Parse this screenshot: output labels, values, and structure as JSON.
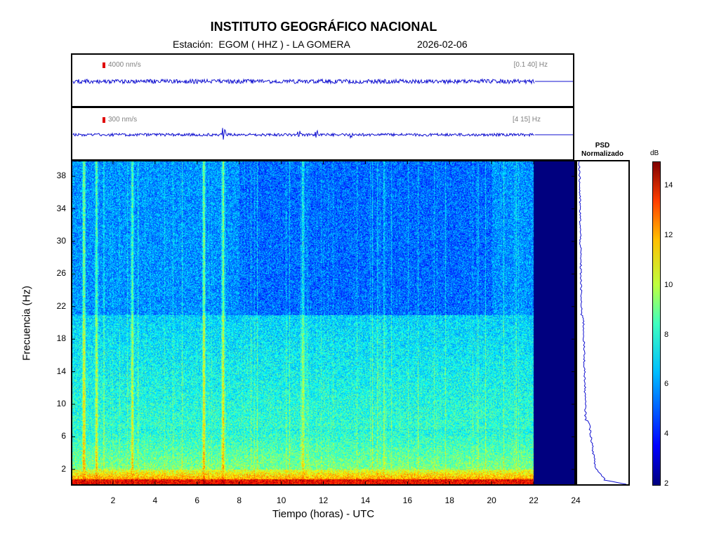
{
  "header": {
    "title": "INSTITUTO GEOGRÁFICO NACIONAL",
    "station_line": "Estación:  EGOM ( HHZ ) - LA GOMERA",
    "date": "2026-02-06"
  },
  "traces": [
    {
      "scale": "4000 nm/s",
      "band": "[0.1 40] Hz"
    },
    {
      "scale": "300 nm/s",
      "band": "[4 15] Hz"
    }
  ],
  "psd": {
    "title_line1": "PSD",
    "title_line2": "Normalizado"
  },
  "colorbar": {
    "unit": "dB",
    "ticks": [
      "2",
      "4",
      "6",
      "8",
      "10",
      "12",
      "14"
    ],
    "range": [
      2,
      15
    ]
  },
  "chart_data": {
    "type": "heatmap",
    "title": "INSTITUTO GEOGRÁFICO NACIONAL",
    "xlabel": "Tiempo (horas) - UTC",
    "ylabel": "Frecuencia  (Hz)",
    "xlim": [
      0,
      24
    ],
    "ylim": [
      0,
      40
    ],
    "x_ticks": [
      "2",
      "4",
      "6",
      "8",
      "10",
      "12",
      "14",
      "16",
      "18",
      "20",
      "22",
      "24"
    ],
    "y_ticks": [
      "2",
      "6",
      "10",
      "14",
      "18",
      "22",
      "26",
      "30",
      "34",
      "38"
    ],
    "data_end_hour": 22,
    "colors": {
      "trace": "#1010d0",
      "nodata": "#00007f"
    }
  }
}
